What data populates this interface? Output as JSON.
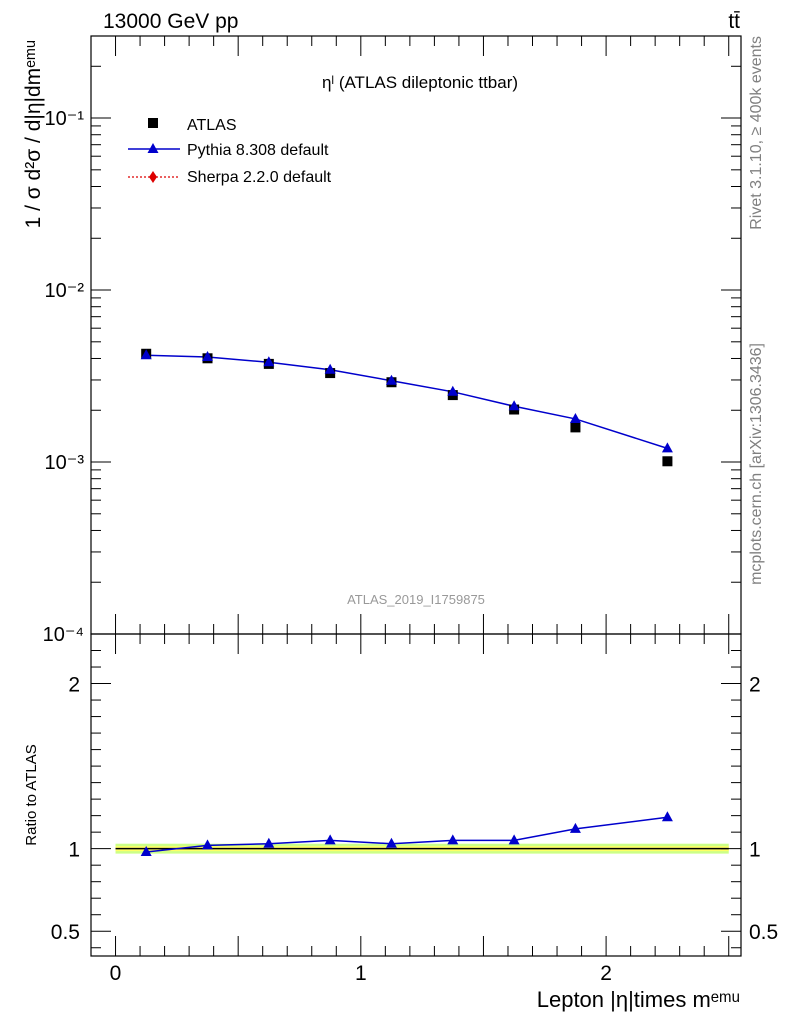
{
  "header": {
    "left": "13000 GeV pp",
    "right": "tt̄"
  },
  "side_text": {
    "rivet": "Rivet 3.1.10, ≥ 400k events",
    "source": "mcplots.cern.ch [arXiv:1306.3436]"
  },
  "colors": {
    "data": "#000000",
    "pythia": "#0000cc",
    "sherpa": "#dd0000",
    "band_inner": "#ffff66",
    "band_outer": "#ccff88"
  },
  "chart_data": [
    {
      "type": "line",
      "title": "ηˡ (ATLAS dileptonic ttbar)",
      "watermark": "ATLAS_2019_I1759875",
      "ylabel": "1 / σ d²σ / d|η|dmᵉᵐᵘ",
      "xlim": [
        -0.1,
        2.55
      ],
      "ylim": [
        0.0001,
        0.3
      ],
      "yscale": "log",
      "yticks": [
        {
          "label": "10⁻⁴",
          "value": 0.0001
        },
        {
          "label": "10⁻³",
          "value": 0.001
        },
        {
          "label": "10⁻²",
          "value": 0.01
        },
        {
          "label": "10⁻¹",
          "value": 0.1
        }
      ],
      "legend": {
        "position": "top-left",
        "entries": [
          "ATLAS",
          "Pythia 8.308 default",
          "Sherpa 2.2.0 default"
        ]
      },
      "x": [
        0.125,
        0.375,
        0.625,
        0.875,
        1.125,
        1.375,
        1.625,
        1.875,
        2.25
      ],
      "series": [
        {
          "name": "ATLAS",
          "marker": "square",
          "values": [
            0.00426,
            0.00401,
            0.00372,
            0.00329,
            0.00291,
            0.00245,
            0.00202,
            0.00159,
            0.00101
          ]
        },
        {
          "name": "Pythia 8.308 default",
          "marker": "triangle",
          "values": [
            0.00418,
            0.00408,
            0.0038,
            0.00344,
            0.00297,
            0.00256,
            0.00211,
            0.00178,
            0.0012
          ]
        }
      ]
    },
    {
      "type": "line",
      "ylabel": "Ratio to ATLAS",
      "xlabel": "Lepton |η|times mᵉᵐᵘ",
      "xlim": [
        -0.1,
        2.55
      ],
      "ylim": [
        0.35,
        2.3
      ],
      "yticks": [
        0.5,
        1,
        2
      ],
      "xticks": [
        0,
        1,
        2
      ],
      "x": [
        0.125,
        0.375,
        0.625,
        0.875,
        1.125,
        1.375,
        1.625,
        1.875,
        2.25
      ],
      "series": [
        {
          "name": "Pythia 8.308 default",
          "values": [
            0.98,
            1.02,
            1.03,
            1.05,
            1.03,
            1.05,
            1.05,
            1.12,
            1.19
          ]
        }
      ],
      "reference": 1,
      "band": {
        "inner": [
          0.985,
          1.015
        ],
        "outer": [
          0.97,
          1.03
        ]
      }
    }
  ]
}
